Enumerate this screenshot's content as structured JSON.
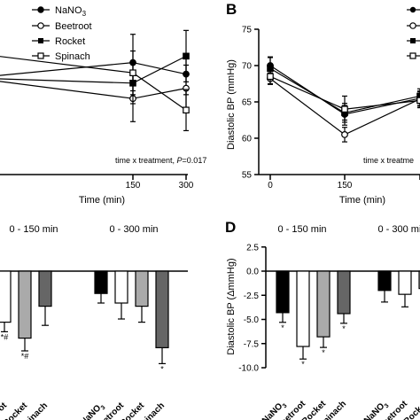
{
  "chart_data": [
    {
      "panel": "A",
      "type": "line",
      "xlabel": "Time (min)",
      "x": [
        0,
        150,
        300
      ],
      "x_tick_labels": [
        "150",
        "300"
      ],
      "annotation_prefix": "time x treatment, ",
      "annotation_p": "P",
      "annotation_value": "=0.017",
      "legend": [
        {
          "name": "NaNO",
          "sub": "3",
          "marker": "circle-filled"
        },
        {
          "name": "Beetroot",
          "marker": "circle-open"
        },
        {
          "name": "Rocket",
          "marker": "square-filled"
        },
        {
          "name": "Spinach",
          "marker": "square-open"
        }
      ],
      "series": [
        {
          "name": "NaNO3",
          "values": [
            null,
            120.5,
            119.6
          ],
          "errors": [
            null,
            2.2,
            1.6
          ]
        },
        {
          "name": "Beetroot",
          "values": [
            null,
            117.7,
            118.5
          ],
          "errors": [
            null,
            1.8,
            1.8
          ]
        },
        {
          "name": "Rocket",
          "values": [
            null,
            118.9,
            121.0
          ],
          "errors": [
            null,
            1.6,
            2.0
          ]
        },
        {
          "name": "Spinach",
          "values": [
            null,
            119.7,
            116.8
          ],
          "errors": [
            null,
            1.7,
            1.6
          ]
        }
      ]
    },
    {
      "panel": "B",
      "type": "line",
      "ylabel": "Diastolic BP (mmHg)",
      "xlabel": "Time (min)",
      "ylim": [
        55,
        75
      ],
      "yticks": [
        "55",
        "60",
        "65",
        "70",
        "75"
      ],
      "x": [
        0,
        150,
        300
      ],
      "x_tick_labels": [
        "0",
        "150",
        "300"
      ],
      "annotation": "time x treatme",
      "legend_markers": [
        "circle-filled",
        "circle-open",
        "square-filled",
        "square-open"
      ],
      "series": [
        {
          "name": "NaNO3",
          "values": [
            70.0,
            63.3,
            65.5
          ],
          "errors": [
            1.2,
            1.5,
            1.0
          ]
        },
        {
          "name": "Beetroot",
          "values": [
            68.2,
            60.5,
            65.4
          ],
          "errors": [
            0.8,
            1.0,
            1.0
          ]
        },
        {
          "name": "Rocket",
          "values": [
            69.6,
            63.5,
            65.8
          ],
          "errors": [
            1.5,
            1.0,
            1.0
          ]
        },
        {
          "name": "Spinach",
          "values": [
            68.5,
            64.0,
            65.2
          ],
          "errors": [
            1.0,
            1.8,
            1.0
          ]
        }
      ]
    },
    {
      "panel": "C",
      "type": "bar",
      "groups": [
        "0 - 150 min",
        "0 - 300 min"
      ],
      "categories": [
        "NaNO3",
        "Beetroot",
        "Rocket",
        "Spinach"
      ],
      "category_labels": [
        {
          "name": "NaNO",
          "sub": "3"
        },
        {
          "name": "Beetroot"
        },
        {
          "name": "Rocket"
        },
        {
          "name": "Spinach"
        }
      ],
      "fills": [
        "#000000",
        "#ffffff",
        "#aaaaaa",
        "#666666"
      ],
      "series": [
        {
          "group": "0 - 150 min",
          "values": [
            1.5,
            -8.0,
            -10.5,
            -5.5
          ],
          "errors": [
            null,
            1.5,
            2.0,
            3.0
          ],
          "marks": [
            "",
            "*#",
            "*#",
            ""
          ]
        },
        {
          "group": "0 - 300 min",
          "values": [
            -3.5,
            -5.0,
            -5.5,
            -12.0
          ],
          "errors": [
            1.5,
            2.5,
            2.5,
            2.5
          ],
          "marks": [
            "",
            "",
            "",
            "*"
          ]
        }
      ]
    },
    {
      "panel": "D",
      "type": "bar",
      "ylabel": "Diastolic BP (ΔmmHg)",
      "ylim": [
        -10,
        2.5
      ],
      "yticks": [
        "2.5",
        "0.0",
        "-2.5",
        "-5.0",
        "-7.5",
        "-10.0"
      ],
      "groups": [
        "0 - 150 min",
        "0 - 300 min"
      ],
      "categories": [
        "NaNO3",
        "Beetroot",
        "Rocket",
        "Spinach"
      ],
      "category_labels": [
        {
          "name": "NaNO",
          "sub": "3"
        },
        {
          "name": "Beetroot"
        },
        {
          "name": "Rocket"
        },
        {
          "name": "Spinach"
        }
      ],
      "fills": [
        "#000000",
        "#ffffff",
        "#aaaaaa",
        "#666666"
      ],
      "series": [
        {
          "group": "0 - 150 min",
          "values": [
            -4.3,
            -7.8,
            -6.8,
            -4.4
          ],
          "errors": [
            1.0,
            1.3,
            1.1,
            1.0
          ],
          "marks": [
            "*",
            "*",
            "*",
            "*"
          ]
        },
        {
          "group": "0 - 300 min",
          "values": [
            -2.0,
            -2.4,
            -1.8,
            -3.2
          ],
          "errors": [
            1.2,
            1.3,
            1.5,
            1.2
          ],
          "marks": [
            "",
            "",
            "",
            ""
          ]
        }
      ]
    }
  ]
}
